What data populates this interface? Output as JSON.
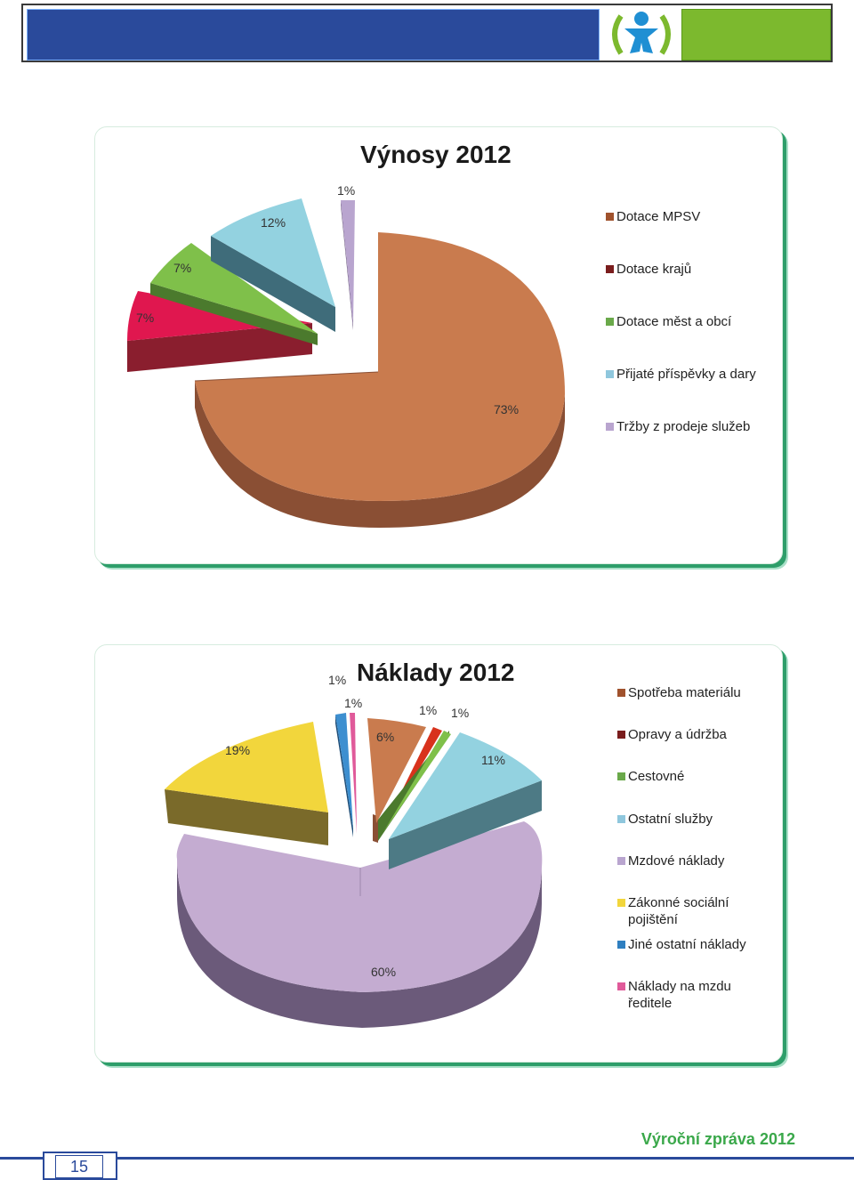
{
  "footer": {
    "report_title": "Výroční zpráva 2012",
    "page_number": "15"
  },
  "chart_data": [
    {
      "type": "pie",
      "title": "Výnosy 2012",
      "series": [
        {
          "name": "Dotace MPSV",
          "label": "73%",
          "value": 73,
          "color": "#c97b4e"
        },
        {
          "name": "Dotace krajů",
          "label": "7%",
          "value": 7,
          "color": "#e0174f"
        },
        {
          "name": "Dotace měst a obcí",
          "label": "7%",
          "value": 7,
          "color": "#7fc04a"
        },
        {
          "name": "Přijaté příspěvky a dary",
          "label": "12%",
          "value": 12,
          "color": "#93d2e0"
        },
        {
          "name": "Tržby z prodeje služeb",
          "label": "1%",
          "value": 1,
          "color": "#b9a5cf"
        }
      ],
      "legend_position": "right"
    },
    {
      "type": "pie",
      "title": "Náklady 2012",
      "series": [
        {
          "name": "Spotřeba materiálu",
          "label": "6%",
          "value": 6,
          "color": "#c97b4e"
        },
        {
          "name": "Opravy a údržba",
          "label": "1%",
          "value": 1,
          "color": "#d8321c"
        },
        {
          "name": "Cestovné",
          "label": "1%",
          "value": 1,
          "color": "#7fc04a"
        },
        {
          "name": "Ostatní služby",
          "label": "11%",
          "value": 11,
          "color": "#93d2e0"
        },
        {
          "name": "Mzdové náklady",
          "label": "60%",
          "value": 60,
          "color": "#c4acd1"
        },
        {
          "name": "Zákonné sociální pojištění",
          "label": "19%",
          "value": 19,
          "color": "#f2d63c"
        },
        {
          "name": "Jiné ostatní náklady",
          "label": "1%",
          "value": 1,
          "color": "#3d8fd0"
        },
        {
          "name": "Náklady na mzdu ředitele",
          "label": "1%",
          "value": 1,
          "color": "#e05a9a"
        }
      ],
      "legend_position": "right"
    }
  ],
  "legend_colors": {
    "vynosy": [
      "#a0522d",
      "#7a1d1d",
      "#6aa94a",
      "#8fc7dd",
      "#b9a5cf"
    ],
    "naklady": [
      "#a0522d",
      "#7a1d1d",
      "#6aa94a",
      "#8fc7dd",
      "#b9a5cf",
      "#f2d63c",
      "#2f7fc0",
      "#e05a9a"
    ]
  },
  "labels_extra": {
    "naklady_legend_lines": {
      "zakonne_1": "Zákonné sociální",
      "zakonne_2": "pojištění",
      "mzda_1": "Náklady na mzdu",
      "mzda_2": "ředitele"
    }
  }
}
